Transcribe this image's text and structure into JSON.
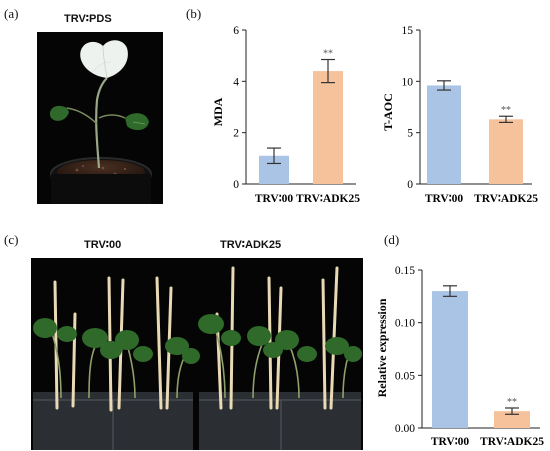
{
  "panels": {
    "a": {
      "label": "(a)",
      "title": "TRV∶PDS"
    },
    "b": {
      "label": "(b)"
    },
    "c": {
      "label": "(c)",
      "group_left": "TRV∶00",
      "group_right": "TRV∶ADK25"
    },
    "d": {
      "label": "(d)"
    }
  },
  "colors": {
    "blue_bar": "#a9c4e4",
    "orange_bar": "#f6c29b",
    "photo_bg": "#050505",
    "leaf_green": "#2f6a2a",
    "albino_leaf": "#eef2ee"
  },
  "chart_data": [
    {
      "id": "mda",
      "type": "bar",
      "categories": [
        "TRV∶00",
        "TRV∶ADK25"
      ],
      "values": [
        1.1,
        4.4
      ],
      "errors": [
        0.3,
        0.45
      ],
      "significance": [
        "",
        "**"
      ],
      "ylabel": "MDA",
      "ylim": [
        0,
        6
      ],
      "yticks": [
        0,
        2,
        4,
        6
      ],
      "colors": [
        "#a9c4e4",
        "#f6c29b"
      ]
    },
    {
      "id": "taoc",
      "type": "bar",
      "categories": [
        "TRV∶00",
        "TRV∶ADK25"
      ],
      "values": [
        9.6,
        6.3
      ],
      "errors": [
        0.45,
        0.3
      ],
      "significance": [
        "",
        "**"
      ],
      "ylabel": "T-AOC",
      "ylim": [
        0,
        15
      ],
      "yticks": [
        0,
        5,
        10,
        15
      ],
      "colors": [
        "#a9c4e4",
        "#f6c29b"
      ]
    },
    {
      "id": "expr",
      "type": "bar",
      "categories": [
        "TRV∶00",
        "TRV∶ADK25"
      ],
      "values": [
        0.13,
        0.016
      ],
      "errors": [
        0.005,
        0.003
      ],
      "significance": [
        "",
        "**"
      ],
      "ylabel": "Relative expression",
      "ylim": [
        0,
        0.15
      ],
      "yticks": [
        0.0,
        0.05,
        0.1,
        0.15
      ],
      "tick_decimals": 2,
      "colors": [
        "#a9c4e4",
        "#f6c29b"
      ]
    }
  ]
}
